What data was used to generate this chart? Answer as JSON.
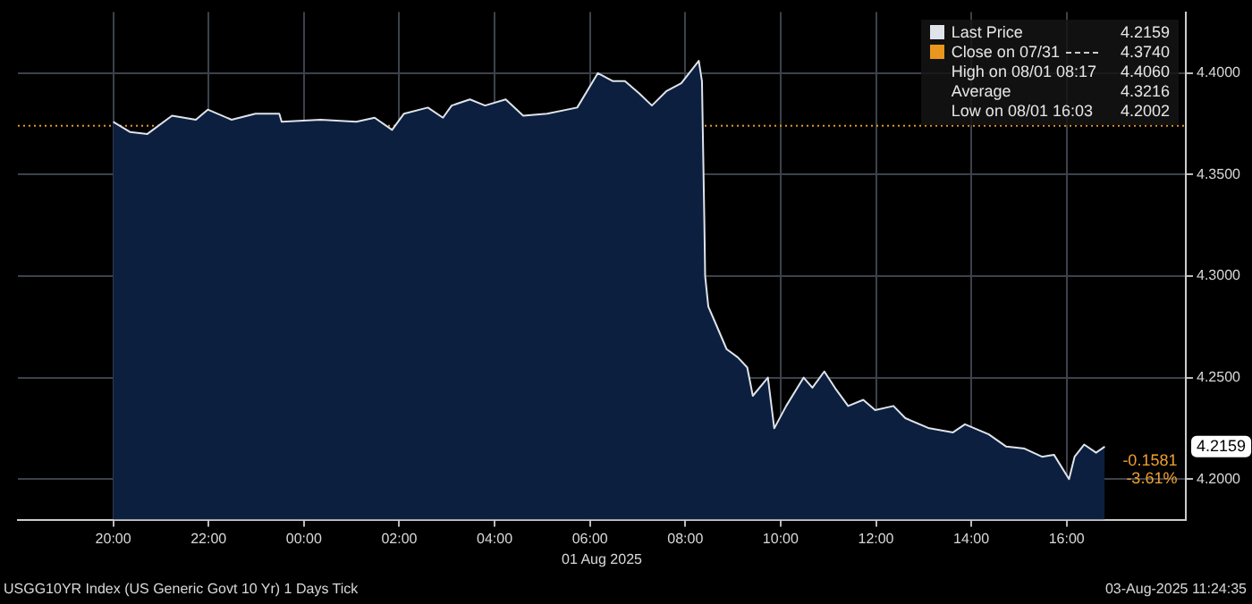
{
  "chart_data": {
    "type": "area",
    "xlabel": "01 Aug 2025",
    "xlim": [
      "2025-07-31T18:00",
      "2025-08-01T18:30"
    ],
    "xticks": [
      {
        "value": "2025-07-31T20:00",
        "label": "20:00"
      },
      {
        "value": "2025-07-31T22:00",
        "label": "22:00"
      },
      {
        "value": "2025-08-01T00:00",
        "label": "00:00"
      },
      {
        "value": "2025-08-01T02:00",
        "label": "02:00"
      },
      {
        "value": "2025-08-01T04:00",
        "label": "04:00"
      },
      {
        "value": "2025-08-01T06:00",
        "label": "06:00"
      },
      {
        "value": "2025-08-01T08:00",
        "label": "08:00"
      },
      {
        "value": "2025-08-01T10:00",
        "label": "10:00"
      },
      {
        "value": "2025-08-01T12:00",
        "label": "12:00"
      },
      {
        "value": "2025-08-01T14:00",
        "label": "14:00"
      },
      {
        "value": "2025-08-01T16:00",
        "label": "16:00"
      }
    ],
    "ylim": [
      4.18,
      4.43
    ],
    "yticks": [
      {
        "value": 4.2,
        "label": "4.2000"
      },
      {
        "value": 4.25,
        "label": "4.2500"
      },
      {
        "value": 4.3,
        "label": "4.3000"
      },
      {
        "value": 4.35,
        "label": "4.3500"
      },
      {
        "value": 4.4,
        "label": "4.4000"
      }
    ],
    "grid": true,
    "legend": "top right",
    "marker": "none",
    "line_style": "solid",
    "series": [
      {
        "name": "Last Price",
        "color": "#dfe3ea",
        "x": [
          "2025-07-31T20:00",
          "2025-07-31T20:21",
          "2025-07-31T20:43",
          "2025-07-31T21:14",
          "2025-07-31T21:44",
          "2025-07-31T21:59",
          "2025-07-31T22:29",
          "2025-07-31T22:59",
          "2025-07-31T23:29",
          "2025-07-31T23:32",
          "2025-08-01T00:21",
          "2025-08-01T01:06",
          "2025-08-01T01:29",
          "2025-08-01T01:51",
          "2025-08-01T02:06",
          "2025-08-01T02:36",
          "2025-08-01T02:55",
          "2025-08-01T03:06",
          "2025-08-01T03:29",
          "2025-08-01T03:48",
          "2025-08-01T04:14",
          "2025-08-01T04:36",
          "2025-08-01T05:06",
          "2025-08-01T05:44",
          "2025-08-01T06:10",
          "2025-08-01T06:29",
          "2025-08-01T06:44",
          "2025-08-01T07:02",
          "2025-08-01T07:18",
          "2025-08-01T07:36",
          "2025-08-01T07:55",
          "2025-08-01T08:17",
          "2025-08-01T08:21",
          "2025-08-01T08:24",
          "2025-08-01T08:25",
          "2025-08-01T08:29",
          "2025-08-01T08:40",
          "2025-08-01T08:52",
          "2025-08-01T09:06",
          "2025-08-01T09:18",
          "2025-08-01T09:25",
          "2025-08-01T09:44",
          "2025-08-01T09:52",
          "2025-08-01T10:07",
          "2025-08-01T10:29",
          "2025-08-01T10:40",
          "2025-08-01T10:55",
          "2025-08-01T11:10",
          "2025-08-01T11:25",
          "2025-08-01T11:44",
          "2025-08-01T11:59",
          "2025-08-01T12:22",
          "2025-08-01T12:37",
          "2025-08-01T13:07",
          "2025-08-01T13:37",
          "2025-08-01T13:52",
          "2025-08-01T14:22",
          "2025-08-01T14:44",
          "2025-08-01T15:07",
          "2025-08-01T15:29",
          "2025-08-01T15:44",
          "2025-08-01T16:03",
          "2025-08-01T16:10",
          "2025-08-01T16:22",
          "2025-08-01T16:37",
          "2025-08-01T16:48"
        ],
        "values": [
          4.376,
          4.371,
          4.37,
          4.379,
          4.377,
          4.382,
          4.377,
          4.38,
          4.38,
          4.376,
          4.377,
          4.376,
          4.378,
          4.372,
          4.38,
          4.383,
          4.378,
          4.384,
          4.387,
          4.384,
          4.387,
          4.379,
          4.38,
          4.383,
          4.4,
          4.396,
          4.396,
          4.39,
          4.384,
          4.391,
          4.395,
          4.406,
          4.396,
          4.327,
          4.3,
          4.285,
          4.275,
          4.264,
          4.26,
          4.255,
          4.241,
          4.25,
          4.225,
          4.236,
          4.25,
          4.245,
          4.253,
          4.244,
          4.236,
          4.239,
          4.234,
          4.236,
          4.23,
          4.225,
          4.223,
          4.227,
          4.222,
          4.216,
          4.215,
          4.211,
          4.212,
          4.2,
          4.211,
          4.217,
          4.213,
          4.216
        ]
      }
    ],
    "ref_lines": [
      {
        "axis": "y",
        "value": 4.374,
        "label": "Close on 07/31",
        "color": "#e8961e",
        "line_style": "dotted"
      }
    ],
    "annotations": [
      "4.2159",
      "4.3740",
      "High on 08/01 08:17",
      "4.4060",
      "Average",
      "4.3216",
      "Low on 08/01 16:03",
      "4.2002",
      "USGG10YR Index (US Generic Govt 10 Yr) 1 Days  Tick",
      "03-Aug-2025 11:24:35",
      "-0.1581",
      "-3.61%",
      "4.2159"
    ]
  }
}
